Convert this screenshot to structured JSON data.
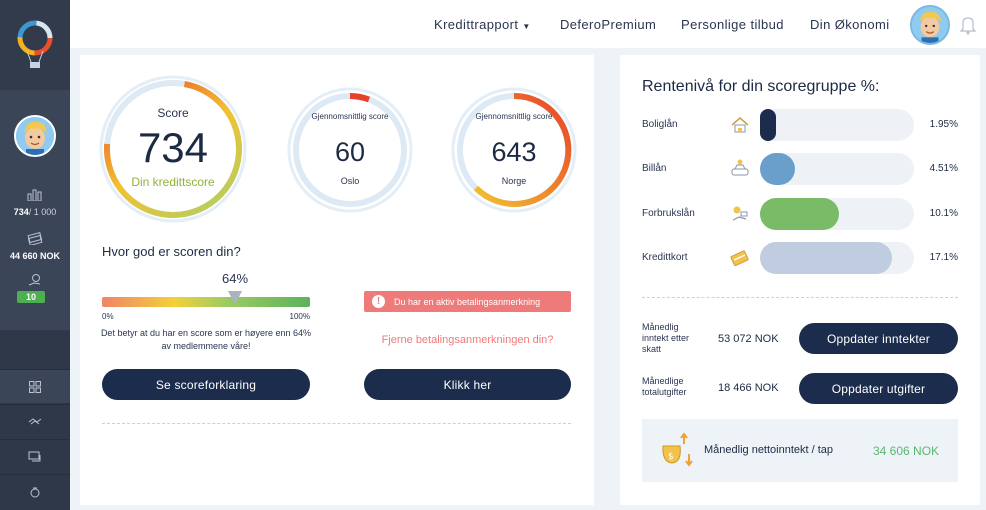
{
  "nav": {
    "items": [
      "Kredittrapport",
      "DeferoPremium",
      "Personlige tilbud",
      "Din Økonomi"
    ]
  },
  "sidebar": {
    "score_value": "734",
    "score_max": "/ 1 000",
    "amount": "44 660 NOK",
    "badge": "10"
  },
  "score_main": {
    "label": "Score",
    "value": "734",
    "sub": "Din kredittscore"
  },
  "score_oslo": {
    "label": "Gjennomsnittlig score",
    "value": "60",
    "sub": "Oslo"
  },
  "score_norge": {
    "label": "Gjennomsnittlig score",
    "value": "643",
    "sub": "Norge"
  },
  "quality": {
    "heading": "Hvor god er scoren din?",
    "percent_label": "64%",
    "percent": 64,
    "min_label": "0%",
    "max_label": "100%",
    "explain": "Det betyr at du har en score som er høyere enn 64% av medlemmene våre!"
  },
  "alert": {
    "text": "Du har en aktiv betalingsanmerkning"
  },
  "remove_link": "Fjerne betalingsanmerkningen din?",
  "buttons": {
    "explain": "Se scoreforklaring",
    "click": "Klikk her",
    "update_income": "Oppdater inntekter",
    "update_expenses": "Oppdater utgifter"
  },
  "rates": {
    "title": "Rentenivå for din scoregruppe %:",
    "items": [
      {
        "label": "Boliglån",
        "value": "1.95%",
        "fill": 0.1,
        "color": "#1b2c4d",
        "icon": "house-icon"
      },
      {
        "label": "Billån",
        "value": "4.51%",
        "fill": 0.23,
        "color": "#6b9fcb",
        "icon": "car-icon"
      },
      {
        "label": "Forbrukslån",
        "value": "10.1%",
        "fill": 0.51,
        "color": "#79bb66",
        "icon": "money-hand-icon"
      },
      {
        "label": "Kredittkort",
        "value": "17.1%",
        "fill": 0.86,
        "color": "#c0cde0",
        "icon": "credit-card-icon"
      }
    ]
  },
  "finance": {
    "income_label": "Månedlig inntekt etter skatt",
    "income_value": "53 072 NOK",
    "expense_label": "Månedlige totalutgifter",
    "expense_value": "18 466 NOK",
    "net_label": "Månedlig nettoinntekt / tap",
    "net_value": "34 606 NOK"
  },
  "colors": {
    "accent": "#1b2c4d",
    "positive": "#5bb86c",
    "alert": "#ef7a7a"
  }
}
